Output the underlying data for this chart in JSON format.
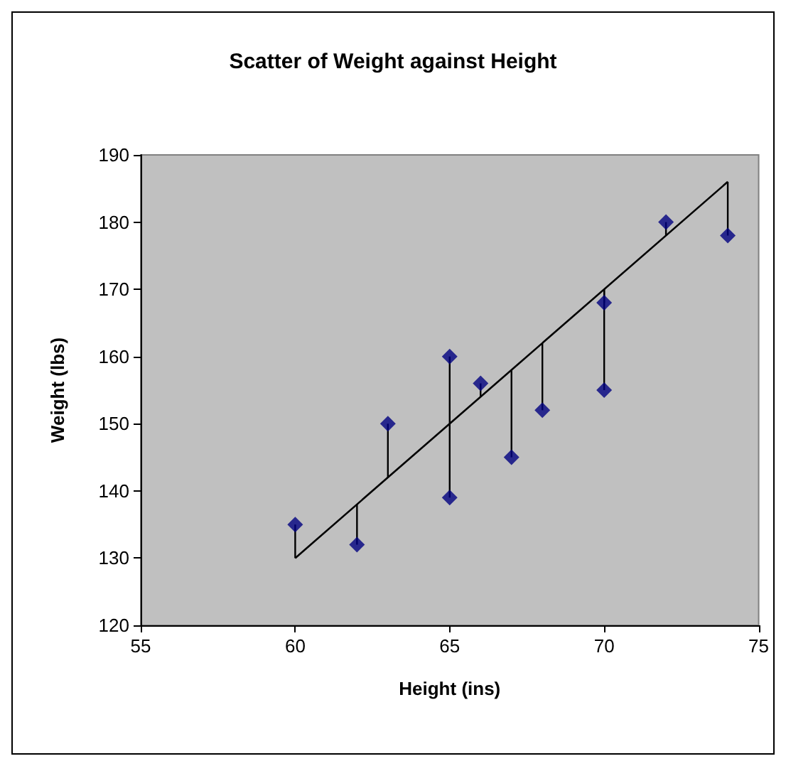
{
  "chart_data": {
    "type": "scatter",
    "title": "Scatter of Weight against Height",
    "xlabel": "Height (ins)",
    "ylabel": "Weight (lbs)",
    "xlim": [
      55,
      75
    ],
    "xticks": [
      55,
      60,
      65,
      70,
      75
    ],
    "ylim": [
      120,
      190
    ],
    "yticks": [
      120,
      130,
      140,
      150,
      160,
      170,
      180,
      190
    ],
    "grid": false,
    "marker": "diamond",
    "series": [
      {
        "color": "#000080",
        "x": [
          60,
          62,
          63,
          65,
          65,
          66,
          67,
          68,
          70,
          70,
          72,
          74
        ],
        "values": [
          135,
          132,
          150,
          160,
          139,
          156,
          145,
          152,
          168,
          155,
          180,
          178
        ],
        "errors": [
          [
            130,
            135
          ],
          [
            132,
            138
          ],
          [
            142,
            150
          ],
          [
            150,
            160
          ],
          [
            139,
            150
          ],
          [
            154,
            156
          ],
          [
            145,
            158
          ],
          [
            152,
            162
          ],
          [
            168,
            170
          ],
          [
            155,
            170
          ],
          [
            178,
            180
          ],
          [
            178,
            186
          ]
        ]
      },
      {
        "type": "line",
        "color": "#000000",
        "marker": "none",
        "x": [
          60,
          74
        ],
        "values": [
          130,
          186
        ]
      }
    ]
  }
}
